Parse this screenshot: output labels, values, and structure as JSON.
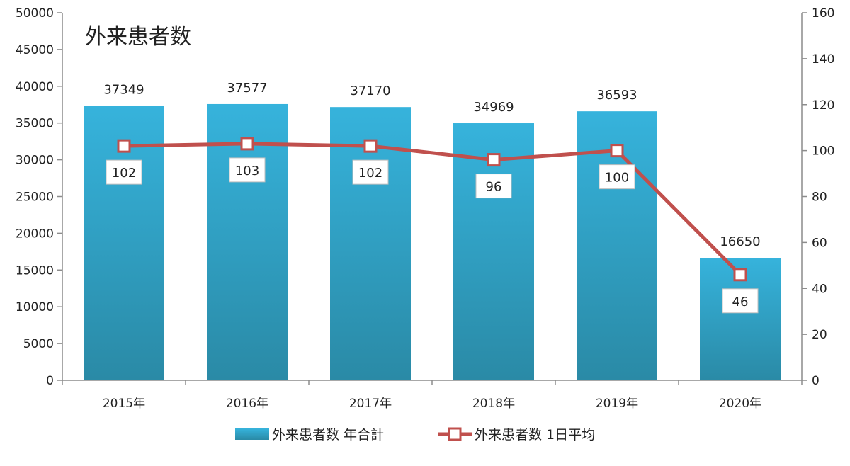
{
  "chart_data": {
    "type": "bar",
    "title": "外来患者数",
    "categories": [
      "2015年",
      "2016年",
      "2017年",
      "2018年",
      "2019年",
      "2020年"
    ],
    "series": [
      {
        "name": "外来患者数 年合計",
        "type": "bar",
        "axis": "left",
        "values": [
          37349,
          37577,
          37170,
          34969,
          36593,
          16650
        ],
        "labels": [
          "37349",
          "37577",
          "37170",
          "34969",
          "36593",
          "16650"
        ],
        "color": "#2fa3c6"
      },
      {
        "name": "外来患者数 1日平均",
        "type": "line",
        "axis": "right",
        "values": [
          102,
          103,
          102,
          96,
          100,
          46
        ],
        "labels": [
          "102",
          "103",
          "102",
          "96",
          "100",
          "46"
        ],
        "color": "#c0504d"
      }
    ],
    "y_left": {
      "ylim": [
        0,
        50000
      ],
      "ticks": [
        0,
        5000,
        10000,
        15000,
        20000,
        25000,
        30000,
        35000,
        40000,
        45000,
        50000
      ],
      "tick_labels": [
        "0",
        "5000",
        "10000",
        "15000",
        "20000",
        "25000",
        "30000",
        "35000",
        "40000",
        "45000",
        "50000"
      ]
    },
    "y_right": {
      "ylim": [
        0,
        160
      ],
      "ticks": [
        0,
        20,
        40,
        60,
        80,
        100,
        120,
        140,
        160
      ],
      "tick_labels": [
        "0",
        "20",
        "40",
        "60",
        "80",
        "100",
        "120",
        "140",
        "160"
      ]
    },
    "grid": false,
    "legend_position": "bottom"
  }
}
